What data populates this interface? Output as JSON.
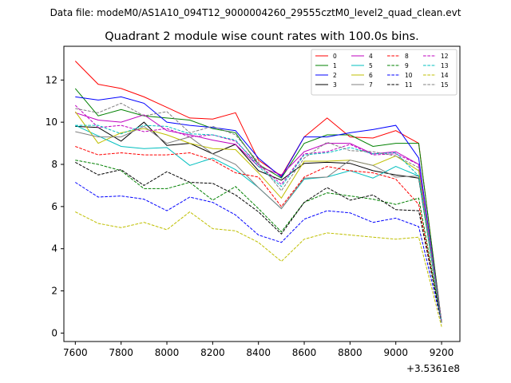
{
  "header": {
    "data_file": "Data file: modeM0/AS1A10_094T12_9000004260_29555cztM0_level2_quad_clean.evt"
  },
  "chart_data": {
    "type": "line",
    "title": "Quadrant 2 module wise count rates with 100.0s bins.",
    "xlabel": "",
    "ylabel": "",
    "x_offset_label": "+3.5361e8",
    "xlim": [
      7550,
      9280
    ],
    "ylim": [
      -0.4,
      13.6
    ],
    "x_ticks": [
      7600,
      7800,
      8000,
      8200,
      8400,
      8600,
      8800,
      9000,
      9200
    ],
    "x_tick_labels": [
      "7600",
      "7800",
      "8000",
      "8200",
      "8400",
      "8600",
      "8800",
      "9000",
      "9200"
    ],
    "y_ticks": [
      0,
      2,
      4,
      6,
      8,
      10,
      12
    ],
    "y_tick_labels": [
      "0",
      "2",
      "4",
      "6",
      "8",
      "10",
      "12"
    ],
    "grid": false,
    "legend_position": "top-right",
    "x": [
      7600,
      7700,
      7800,
      7900,
      8000,
      8100,
      8200,
      8300,
      8400,
      8500,
      8600,
      8700,
      8800,
      8900,
      9000,
      9100,
      9200
    ],
    "series": [
      {
        "name": "0",
        "color": "#ff0000",
        "dash": "solid",
        "values": [
          12.9,
          11.8,
          11.6,
          11.2,
          10.7,
          10.2,
          10.15,
          10.45,
          8.2,
          7.45,
          9.3,
          10.2,
          9.3,
          9.25,
          9.6,
          9.0,
          0.5
        ]
      },
      {
        "name": "1",
        "color": "#008000",
        "dash": "solid",
        "values": [
          11.6,
          10.3,
          10.6,
          10.3,
          10.2,
          10.1,
          9.7,
          9.5,
          8.0,
          7.35,
          9.0,
          9.4,
          9.4,
          8.85,
          9.0,
          9.0,
          0.5
        ]
      },
      {
        "name": "2",
        "color": "#0000ff",
        "dash": "solid",
        "values": [
          11.2,
          11.05,
          11.2,
          10.9,
          10.0,
          9.85,
          9.75,
          9.6,
          8.3,
          7.4,
          9.3,
          9.3,
          9.5,
          9.65,
          9.85,
          8.3,
          0.5
        ]
      },
      {
        "name": "3",
        "color": "#000000",
        "dash": "solid",
        "values": [
          9.8,
          9.75,
          9.1,
          10.0,
          8.9,
          9.0,
          8.5,
          8.95,
          7.7,
          7.25,
          8.05,
          8.1,
          8.05,
          7.7,
          7.5,
          7.35,
          0.5
        ]
      },
      {
        "name": "4",
        "color": "#bf00bf",
        "dash": "solid",
        "values": [
          10.45,
          10.1,
          10.0,
          10.35,
          9.6,
          9.4,
          9.15,
          8.95,
          7.9,
          7.5,
          8.6,
          9.0,
          9.0,
          8.5,
          8.6,
          8.0,
          0.5
        ]
      },
      {
        "name": "5",
        "color": "#00bfbf",
        "dash": "solid",
        "values": [
          9.85,
          9.35,
          8.85,
          8.75,
          8.8,
          7.95,
          8.3,
          7.75,
          6.9,
          5.9,
          7.3,
          7.4,
          7.7,
          7.35,
          7.9,
          7.45,
          0.5
        ]
      },
      {
        "name": "6",
        "color": "#bfbf00",
        "dash": "solid",
        "values": [
          10.5,
          9.0,
          9.5,
          9.7,
          9.4,
          9.0,
          8.75,
          8.7,
          7.6,
          6.4,
          8.15,
          8.15,
          8.2,
          7.95,
          8.4,
          7.7,
          0.5
        ]
      },
      {
        "name": "7",
        "color": "#808080",
        "dash": "solid",
        "values": [
          9.55,
          9.3,
          9.3,
          9.8,
          9.0,
          9.3,
          8.5,
          8.0,
          6.9,
          5.9,
          7.35,
          7.4,
          8.2,
          7.95,
          7.4,
          7.45,
          0.5
        ]
      },
      {
        "name": "8",
        "color": "#ff0000",
        "dash": "dashed",
        "values": [
          8.85,
          8.45,
          8.55,
          8.45,
          8.45,
          8.55,
          8.2,
          7.6,
          7.4,
          6.0,
          7.4,
          7.9,
          7.7,
          7.6,
          7.3,
          6.1,
          0.5
        ]
      },
      {
        "name": "9",
        "color": "#008000",
        "dash": "dashed",
        "values": [
          8.2,
          8.0,
          7.7,
          6.85,
          6.85,
          7.15,
          6.3,
          6.95,
          5.9,
          4.8,
          6.2,
          6.65,
          6.5,
          6.35,
          6.1,
          6.4,
          0.5
        ]
      },
      {
        "name": "10",
        "color": "#0000ff",
        "dash": "dashed",
        "values": [
          7.15,
          6.45,
          6.5,
          6.35,
          5.8,
          6.45,
          6.2,
          5.6,
          4.65,
          4.3,
          5.4,
          5.8,
          5.7,
          5.25,
          5.45,
          5.05,
          0.5
        ]
      },
      {
        "name": "11",
        "color": "#000000",
        "dash": "dashed",
        "values": [
          8.1,
          7.5,
          7.75,
          7.0,
          7.65,
          7.15,
          7.1,
          6.55,
          5.75,
          4.7,
          6.2,
          6.9,
          6.3,
          6.55,
          5.85,
          5.8,
          0.5
        ]
      },
      {
        "name": "12",
        "color": "#bf00bf",
        "dash": "dashed",
        "values": [
          10.8,
          9.75,
          9.85,
          9.55,
          9.7,
          9.3,
          9.4,
          9.1,
          8.0,
          7.05,
          8.5,
          8.6,
          8.95,
          8.45,
          8.5,
          8.0,
          0.5
        ]
      },
      {
        "name": "13",
        "color": "#00bfbf",
        "dash": "dashed",
        "values": [
          9.85,
          9.85,
          9.45,
          9.85,
          9.8,
          9.45,
          9.4,
          9.15,
          7.9,
          6.95,
          8.45,
          8.55,
          8.8,
          8.5,
          8.55,
          7.45,
          0.5
        ]
      },
      {
        "name": "14",
        "color": "#bfbf00",
        "dash": "dashed",
        "values": [
          5.75,
          5.2,
          5.0,
          5.25,
          4.9,
          5.75,
          4.95,
          4.85,
          4.3,
          3.4,
          4.45,
          4.75,
          4.65,
          4.55,
          4.45,
          4.55,
          0.3
        ]
      },
      {
        "name": "15",
        "color": "#808080",
        "dash": "dashed",
        "values": [
          10.65,
          10.45,
          10.9,
          10.3,
          10.5,
          9.5,
          9.8,
          9.4,
          8.1,
          6.75,
          8.3,
          9.05,
          8.65,
          8.6,
          8.4,
          7.85,
          0.5
        ]
      }
    ]
  }
}
